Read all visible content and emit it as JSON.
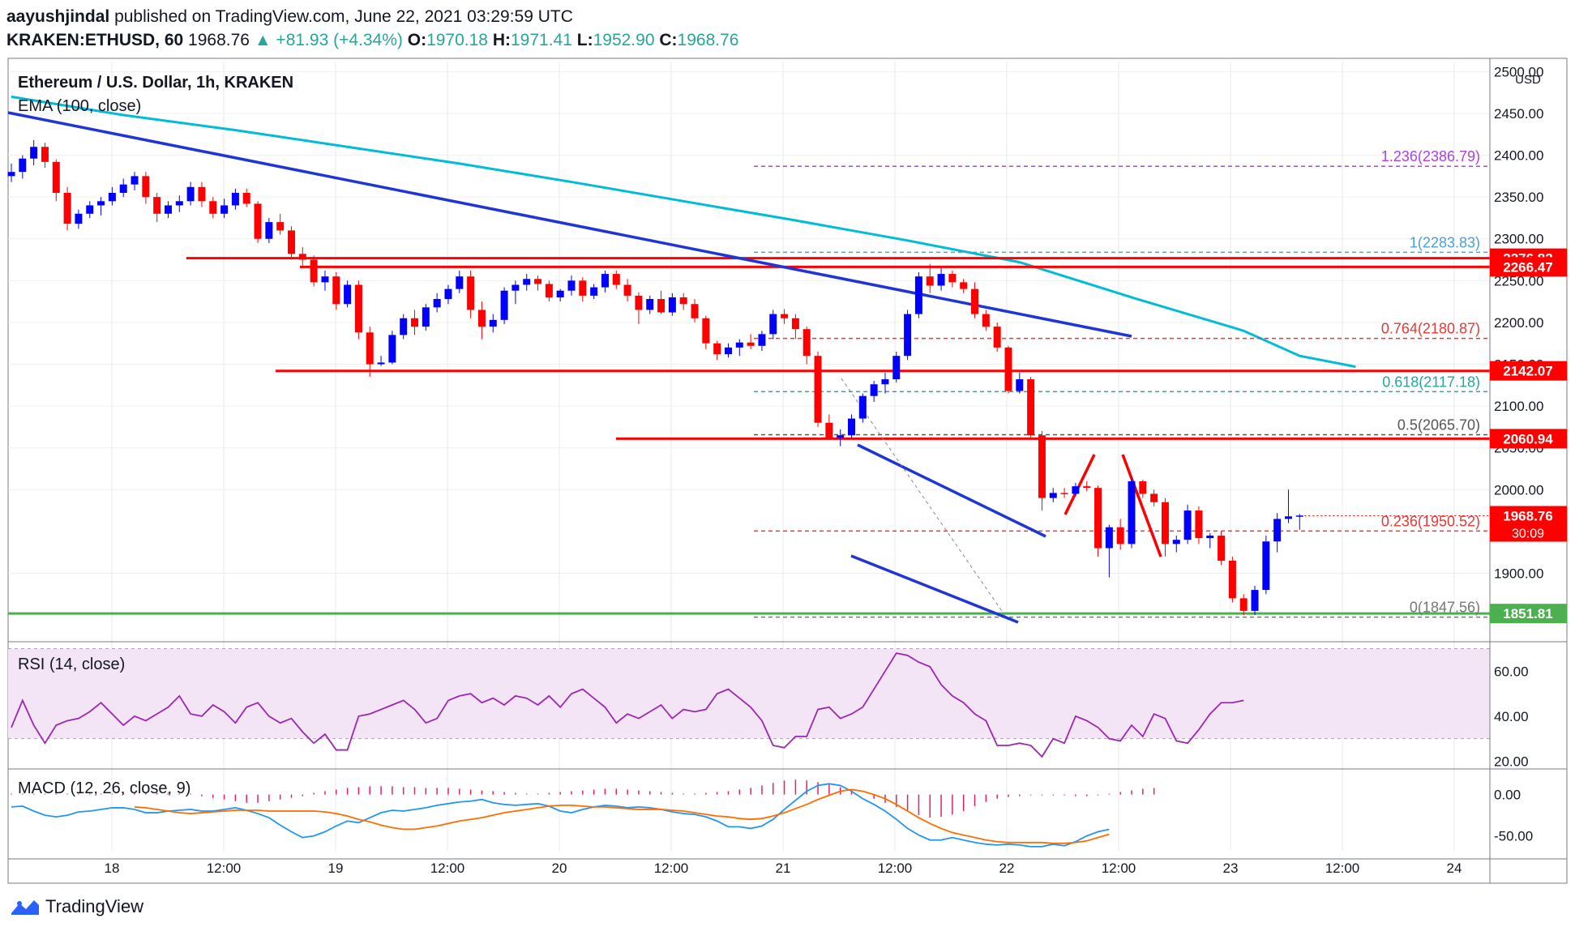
{
  "header": {
    "user": "aayushjindal",
    "published": "published on TradingView.com, June 22, 2021 03:29:59 UTC",
    "symbol": "KRAKEN:ETHUSD, 60",
    "last": "1968.76",
    "change": "▲ +81.93 (+4.34%)",
    "o_label": "O:",
    "o": "1970.18",
    "h_label": "H:",
    "h": "1971.41",
    "l_label": "L:",
    "l": "1952.90",
    "c_label": "C:",
    "c": "1968.76"
  },
  "footer": {
    "brand": "TradingView"
  },
  "colors": {
    "up": "#0000ff",
    "down": "#ff0000",
    "ema": "#00bcd4",
    "trend": "#1f35d6",
    "level": "#ff0000",
    "support": "#4caf50",
    "rsi": "#9c27b0",
    "rsi_band": "#f3e5f5",
    "macd": "#2196f3",
    "signal": "#ff6d00",
    "hist": "#e91e63"
  },
  "chart_data": [
    {
      "type": "candlestick",
      "title": "Ethereum / U.S. Dollar, 1h, KRAKEN",
      "indicator": "EMA (100, close)",
      "currency": "USD",
      "x_tick_labels": [
        "18",
        "12:00",
        "19",
        "12:00",
        "20",
        "12:00",
        "21",
        "12:00",
        "22",
        "12:00",
        "23",
        "12:00",
        "24"
      ],
      "y_ticks": [
        1900,
        2000,
        2050,
        2100,
        2150,
        2200,
        2250,
        2300,
        2350,
        2400,
        2450,
        2500
      ],
      "y_tick_labels": [
        "1900.00",
        "2000.00",
        "2050.00",
        "2100.00",
        "2150.00",
        "2200.00",
        "2250.00",
        "2300.00",
        "2350.00",
        "2400.00",
        "2450.00",
        "2500.00"
      ],
      "ylim": [
        1820,
        2512
      ],
      "candles_ohlc": [
        [
          2375,
          2390,
          2368,
          2380
        ],
        [
          2380,
          2400,
          2372,
          2396
        ],
        [
          2396,
          2418,
          2388,
          2410
        ],
        [
          2410,
          2415,
          2385,
          2392
        ],
        [
          2392,
          2395,
          2345,
          2355
        ],
        [
          2355,
          2362,
          2310,
          2318
        ],
        [
          2318,
          2335,
          2312,
          2330
        ],
        [
          2330,
          2345,
          2325,
          2340
        ],
        [
          2340,
          2350,
          2328,
          2345
        ],
        [
          2345,
          2362,
          2340,
          2355
        ],
        [
          2355,
          2372,
          2350,
          2365
        ],
        [
          2365,
          2380,
          2358,
          2375
        ],
        [
          2375,
          2380,
          2342,
          2350
        ],
        [
          2350,
          2355,
          2320,
          2330
        ],
        [
          2330,
          2345,
          2325,
          2340
        ],
        [
          2340,
          2352,
          2332,
          2345
        ],
        [
          2345,
          2368,
          2340,
          2362
        ],
        [
          2362,
          2368,
          2338,
          2345
        ],
        [
          2345,
          2350,
          2325,
          2330
        ],
        [
          2330,
          2348,
          2325,
          2340
        ],
        [
          2340,
          2360,
          2335,
          2355
        ],
        [
          2355,
          2360,
          2338,
          2342
        ],
        [
          2342,
          2345,
          2295,
          2300
        ],
        [
          2300,
          2325,
          2295,
          2320
        ],
        [
          2320,
          2330,
          2305,
          2310
        ],
        [
          2310,
          2315,
          2275,
          2282
        ],
        [
          2282,
          2290,
          2268,
          2275
        ],
        [
          2275,
          2280,
          2243,
          2248
        ],
        [
          2248,
          2262,
          2238,
          2255
        ],
        [
          2255,
          2260,
          2215,
          2222
        ],
        [
          2222,
          2250,
          2218,
          2245
        ],
        [
          2245,
          2250,
          2180,
          2188
        ],
        [
          2188,
          2195,
          2135,
          2150
        ],
        [
          2150,
          2160,
          2148,
          2152
        ],
        [
          2152,
          2190,
          2150,
          2185
        ],
        [
          2185,
          2210,
          2180,
          2205
        ],
        [
          2205,
          2215,
          2185,
          2195
        ],
        [
          2195,
          2222,
          2190,
          2218
        ],
        [
          2218,
          2235,
          2212,
          2228
        ],
        [
          2228,
          2245,
          2222,
          2240
        ],
        [
          2240,
          2262,
          2235,
          2255
        ],
        [
          2255,
          2262,
          2205,
          2215
        ],
        [
          2215,
          2225,
          2180,
          2195
        ],
        [
          2195,
          2210,
          2188,
          2203
        ],
        [
          2203,
          2242,
          2198,
          2238
        ],
        [
          2238,
          2250,
          2222,
          2245
        ],
        [
          2245,
          2258,
          2238,
          2252
        ],
        [
          2252,
          2256,
          2238,
          2246
        ],
        [
          2246,
          2250,
          2225,
          2230
        ],
        [
          2230,
          2240,
          2225,
          2238
        ],
        [
          2238,
          2256,
          2232,
          2250
        ],
        [
          2250,
          2254,
          2225,
          2232
        ],
        [
          2232,
          2246,
          2228,
          2242
        ],
        [
          2242,
          2262,
          2236,
          2258
        ],
        [
          2258,
          2262,
          2240,
          2245
        ],
        [
          2245,
          2252,
          2225,
          2232
        ],
        [
          2232,
          2236,
          2198,
          2215
        ],
        [
          2215,
          2232,
          2210,
          2228
        ],
        [
          2228,
          2238,
          2210,
          2212
        ],
        [
          2212,
          2235,
          2208,
          2230
        ],
        [
          2230,
          2235,
          2215,
          2222
        ],
        [
          2222,
          2228,
          2200,
          2205
        ],
        [
          2205,
          2208,
          2168,
          2175
        ],
        [
          2175,
          2178,
          2155,
          2162
        ],
        [
          2162,
          2175,
          2158,
          2170
        ],
        [
          2170,
          2180,
          2160,
          2176
        ],
        [
          2176,
          2186,
          2168,
          2172
        ],
        [
          2172,
          2190,
          2166,
          2186
        ],
        [
          2186,
          2215,
          2180,
          2210
        ],
        [
          2210,
          2216,
          2198,
          2205
        ],
        [
          2205,
          2210,
          2180,
          2192
        ],
        [
          2192,
          2195,
          2150,
          2160
        ],
        [
          2160,
          2165,
          2075,
          2080
        ],
        [
          2080,
          2090,
          2060,
          2062
        ],
        [
          2062,
          2072,
          2052,
          2065
        ],
        [
          2065,
          2090,
          2062,
          2085
        ],
        [
          2085,
          2115,
          2080,
          2112
        ],
        [
          2112,
          2130,
          2105,
          2126
        ],
        [
          2126,
          2140,
          2115,
          2132
        ],
        [
          2132,
          2165,
          2128,
          2160
        ],
        [
          2160,
          2215,
          2155,
          2210
        ],
        [
          2210,
          2260,
          2205,
          2255
        ],
        [
          2255,
          2270,
          2235,
          2244
        ],
        [
          2244,
          2265,
          2238,
          2258
        ],
        [
          2258,
          2262,
          2242,
          2248
        ],
        [
          2248,
          2252,
          2235,
          2240
        ],
        [
          2240,
          2248,
          2205,
          2210
        ],
        [
          2210,
          2215,
          2190,
          2195
        ],
        [
          2195,
          2200,
          2165,
          2170
        ],
        [
          2170,
          2172,
          2115,
          2118
        ],
        [
          2118,
          2140,
          2115,
          2132
        ],
        [
          2132,
          2135,
          2060,
          2065
        ],
        [
          2065,
          2070,
          1975,
          1990
        ],
        [
          1990,
          2002,
          1985,
          1996
        ],
        [
          1996,
          2002,
          1990,
          1995
        ],
        [
          1995,
          2008,
          1992,
          2004
        ],
        [
          2004,
          2010,
          1998,
          2002
        ],
        [
          2002,
          2005,
          1920,
          1930
        ],
        [
          1930,
          1958,
          1895,
          1955
        ],
        [
          1955,
          1965,
          1928,
          1935
        ],
        [
          1935,
          2015,
          1930,
          2010
        ],
        [
          2010,
          2012,
          1990,
          1995
        ],
        [
          1995,
          2000,
          1980,
          1985
        ],
        [
          1985,
          1990,
          1920,
          1935
        ],
        [
          1935,
          1945,
          1925,
          1940
        ],
        [
          1940,
          1982,
          1935,
          1975
        ],
        [
          1975,
          1980,
          1935,
          1942
        ],
        [
          1942,
          1948,
          1930,
          1945
        ],
        [
          1945,
          1950,
          1910,
          1915
        ],
        [
          1915,
          1920,
          1865,
          1870
        ],
        [
          1870,
          1875,
          1850,
          1855
        ],
        [
          1855,
          1885,
          1850,
          1880
        ],
        [
          1880,
          1945,
          1875,
          1938
        ],
        [
          1938,
          1972,
          1925,
          1965
        ],
        [
          1965,
          2000,
          1960,
          1968
        ],
        [
          1968,
          1971,
          1952,
          1969
        ]
      ],
      "ema100": [
        [
          0,
          2470
        ],
        [
          10,
          2448
        ],
        [
          20,
          2430
        ],
        [
          30,
          2410
        ],
        [
          40,
          2390
        ],
        [
          50,
          2368
        ],
        [
          60,
          2345
        ],
        [
          70,
          2322
        ],
        [
          80,
          2298
        ],
        [
          90,
          2272
        ],
        [
          100,
          2230
        ],
        [
          110,
          2190
        ],
        [
          115,
          2160
        ],
        [
          120,
          2147
        ]
      ],
      "trend_lines": [
        {
          "from": [
            0,
            2445
          ],
          "to": [
            140,
            2180
          ]
        },
        {
          "from": [
            100,
            2058
          ],
          "to": [
            125,
            1993
          ]
        },
        {
          "from": [
            100,
            1906
          ],
          "to": [
            125,
            1845
          ]
        }
      ],
      "levels": [
        {
          "value": 2276.82,
          "label": "2276.82",
          "color": "#ff0000"
        },
        {
          "value": 2266.47,
          "label": "2266.47",
          "color": "#ff0000"
        },
        {
          "value": 2142.07,
          "label": "2142.07",
          "color": "#ff0000"
        },
        {
          "value": 2060.94,
          "label": "2060.94",
          "color": "#ff0000"
        },
        {
          "value": 1851.81,
          "label": "1851.81",
          "color": "#4caf50"
        }
      ],
      "price_label": {
        "value": "1968.76",
        "countdown": "30:09"
      },
      "fibonacci": [
        {
          "value": 2386.79,
          "label": "1.236(2386.79)",
          "color": "#b040e0"
        },
        {
          "value": 2283.83,
          "label": "1(2283.83)",
          "color": "#4aa0d8"
        },
        {
          "value": 2180.87,
          "label": "0.764(2180.87)",
          "color": "#e53935"
        },
        {
          "value": 2117.18,
          "label": "0.618(2117.18)",
          "color": "#26a69a"
        },
        {
          "value": 2065.7,
          "label": "0.5(2065.70)",
          "color": "#555555"
        },
        {
          "value": 1950.52,
          "label": "0.236(1950.52)",
          "color": "#e53935"
        },
        {
          "value": 1847.56,
          "label": "0(1847.56)",
          "color": "#777777"
        }
      ]
    },
    {
      "type": "line",
      "title": "RSI (14, close)",
      "y_tick_labels": [
        "20.00",
        "40.00",
        "60.00"
      ],
      "ylim": [
        18,
        72
      ],
      "band": [
        30,
        70
      ],
      "values": [
        35,
        47,
        36,
        28,
        36,
        38,
        39,
        42,
        46,
        41,
        36,
        40,
        38,
        41,
        44,
        49,
        41,
        40,
        45,
        42,
        37,
        44,
        46,
        40,
        37,
        39,
        33,
        28,
        32,
        25,
        25,
        40,
        41,
        43,
        45,
        47,
        43,
        37,
        39,
        47,
        49,
        50,
        46,
        48,
        45,
        49,
        48,
        45,
        49,
        44,
        50,
        52,
        48,
        44,
        37,
        41,
        39,
        42,
        45,
        39,
        43,
        42,
        43,
        50,
        52,
        48,
        44,
        38,
        27,
        26,
        31,
        31,
        43,
        44,
        39,
        41,
        44,
        52,
        60,
        68,
        67,
        64,
        62,
        54,
        49,
        46,
        41,
        38,
        27,
        27,
        28,
        27,
        22,
        30,
        28,
        40,
        38,
        35,
        30,
        29,
        36,
        31,
        41,
        39,
        29,
        28,
        34,
        41,
        46,
        46,
        47
      ]
    },
    {
      "type": "line",
      "title": "MACD (12, 26, close, 9)",
      "y_tick_labels": [
        "0.00",
        "-50.00"
      ],
      "ylim": [
        -68,
        28
      ],
      "macd": [
        -15,
        -14,
        -20,
        -25,
        -27,
        -25,
        -21,
        -20,
        -18,
        -16,
        -16,
        -18,
        -22,
        -22,
        -20,
        -19,
        -18,
        -20,
        -20,
        -18,
        -16,
        -19,
        -23,
        -28,
        -37,
        -45,
        -52,
        -50,
        -45,
        -38,
        -32,
        -34,
        -28,
        -22,
        -19,
        -20,
        -18,
        -16,
        -13,
        -11,
        -9,
        -8,
        -6,
        -10,
        -12,
        -13,
        -12,
        -11,
        -14,
        -20,
        -22,
        -18,
        -15,
        -13,
        -14,
        -16,
        -15,
        -16,
        -18,
        -21,
        -23,
        -24,
        -27,
        -32,
        -39,
        -39,
        -41,
        -38,
        -30,
        -18,
        -7,
        4,
        11,
        13,
        11,
        4,
        -5,
        -12,
        -20,
        -30,
        -41,
        -49,
        -55,
        -55,
        -52,
        -55,
        -58,
        -60,
        -61,
        -60,
        -61,
        -63,
        -63,
        -60,
        -62,
        -57,
        -50,
        -45,
        -42
      ],
      "signal": [
        -15,
        -16,
        -18,
        -20,
        -22,
        -23,
        -22,
        -21,
        -20,
        -19,
        -19,
        -19,
        -20,
        -20,
        -20,
        -20,
        -20,
        -21,
        -23,
        -26,
        -30,
        -33,
        -37,
        -40,
        -42,
        -42,
        -40,
        -38,
        -35,
        -32,
        -30,
        -28,
        -25,
        -22,
        -20,
        -18,
        -16,
        -14,
        -13,
        -13,
        -14,
        -15,
        -15,
        -16,
        -17,
        -18,
        -18,
        -18,
        -19,
        -20,
        -22,
        -24,
        -26,
        -27,
        -29,
        -30,
        -29,
        -26,
        -22,
        -17,
        -12,
        -6,
        -1,
        4,
        6,
        4,
        0,
        -5,
        -12,
        -20,
        -28,
        -35,
        -41,
        -46,
        -49,
        -52,
        -55,
        -57,
        -58,
        -58,
        -58,
        -58,
        -59,
        -59,
        -58,
        -56,
        -52,
        -48
      ],
      "histogram": [
        1,
        1,
        1,
        1,
        1,
        1,
        1,
        1,
        1,
        1,
        2,
        2,
        2,
        2,
        2,
        1,
        1,
        -2,
        -4,
        -6,
        -8,
        -10,
        -10,
        -8,
        -6,
        -4,
        -2,
        2,
        4,
        6,
        8,
        9,
        10,
        10,
        10,
        9,
        9,
        8,
        8,
        8,
        7,
        6,
        5,
        4,
        3,
        2,
        1,
        1,
        2,
        3,
        4,
        5,
        6,
        7,
        7,
        6,
        5,
        4,
        3,
        2,
        1,
        1,
        2,
        3,
        4,
        6,
        8,
        11,
        14,
        17,
        18,
        17,
        15,
        12,
        9,
        5,
        0,
        -5,
        -10,
        -15,
        -20,
        -25,
        -28,
        -27,
        -24,
        -20,
        -14,
        -9,
        -5,
        -3,
        -2,
        -1,
        -1,
        -1,
        -1,
        -2,
        -2,
        -1,
        1,
        3,
        5,
        7,
        8
      ]
    }
  ]
}
